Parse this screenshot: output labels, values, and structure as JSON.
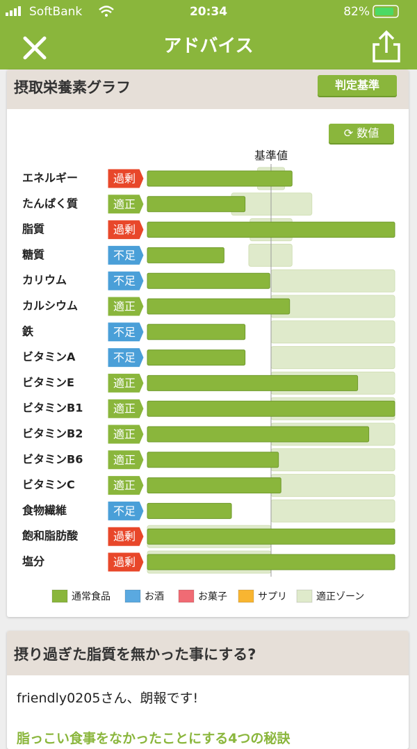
{
  "status_bar": {
    "carrier": "SoftBank",
    "time": "20:34",
    "battery": "82%"
  },
  "nav": {
    "title": "アドバイス"
  },
  "graph_card": {
    "title": "摂取栄養素グラフ",
    "criteria_button": "判定基準",
    "number_button": "数値"
  },
  "chart_data": {
    "type": "bar",
    "orientation": "horizontal",
    "categories": [
      "エネルギー",
      "たんぱく質",
      "脂質",
      "糖質",
      "カリウム",
      "カルシウム",
      "鉄",
      "ビタミンA",
      "ビタミンE",
      "ビタミンB1",
      "ビタミンB2",
      "ビタミンB6",
      "ビタミンC",
      "食物繊維",
      "飽和脂肪酸",
      "塩分"
    ],
    "status_labels": [
      "過剰",
      "適正",
      "過剰",
      "不足",
      "不足",
      "適正",
      "不足",
      "不足",
      "適正",
      "適正",
      "適正",
      "適正",
      "適正",
      "不足",
      "過剰",
      "過剰"
    ],
    "status_colors": {
      "過剰": "#e8472a",
      "適正": "#8ab63c",
      "不足": "#4a9fd8"
    },
    "xlim": [
      0,
      200
    ],
    "reference": {
      "label": "基準値",
      "value": 100
    },
    "series": [
      {
        "name": "通常食品",
        "color": "#8ab63c",
        "values": [
          117,
          79,
          200,
          62,
          99,
          115,
          79,
          79,
          170,
          200,
          179,
          106,
          108,
          68,
          200,
          200
        ]
      },
      {
        "name": "お酒",
        "color": "#5aa9e0",
        "values": [
          0,
          0,
          0,
          0,
          0,
          0,
          0,
          0,
          0,
          0,
          0,
          0,
          0,
          0,
          0,
          0
        ]
      },
      {
        "name": "お菓子",
        "color": "#f06b74",
        "values": [
          0,
          0,
          0,
          0,
          0,
          0,
          0,
          0,
          0,
          0,
          0,
          0,
          0,
          0,
          0,
          0
        ]
      },
      {
        "name": "サプリ",
        "color": "#f8b531",
        "values": [
          0,
          0,
          0,
          0,
          0,
          0,
          0,
          0,
          0,
          0,
          0,
          0,
          0,
          0,
          0,
          0
        ]
      }
    ],
    "zones": {
      "name": "適正ゾーン",
      "color": "#dfeacb",
      "ranges": [
        [
          89,
          111
        ],
        [
          68,
          133
        ],
        [
          83,
          117
        ],
        [
          82,
          117
        ],
        [
          100,
          200
        ],
        [
          100,
          200
        ],
        [
          100,
          200
        ],
        [
          100,
          200
        ],
        [
          100,
          200
        ],
        [
          100,
          200
        ],
        [
          100,
          200
        ],
        [
          100,
          200
        ],
        [
          100,
          200
        ],
        [
          100,
          200
        ],
        [
          0,
          100
        ],
        [
          0,
          100
        ]
      ]
    }
  },
  "article_card": {
    "title": "摂り過ぎた脂質を無かった事にする?",
    "greeting": "friendly0205さん、朗報です!",
    "link": "脂っこい食事をなかったことにする4つの秘訣"
  }
}
